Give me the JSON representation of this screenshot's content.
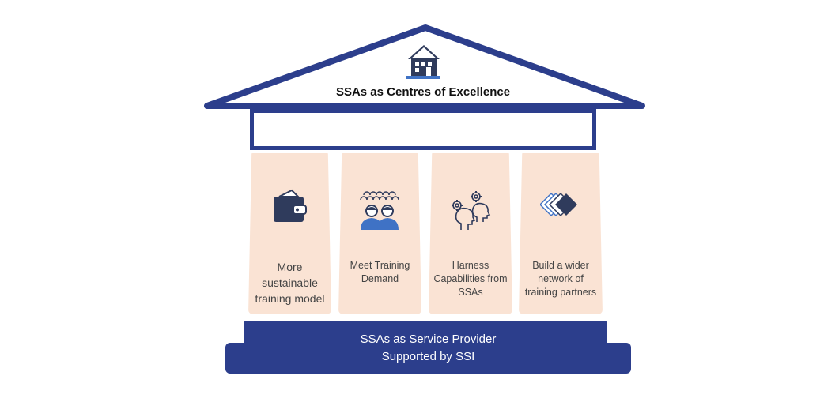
{
  "roof": {
    "title": "SSAs as Centres of Excellence",
    "icon": "house-icon"
  },
  "pillars": [
    {
      "label": "More sustainable training model",
      "icon": "wallet-icon"
    },
    {
      "label": "Meet Training Demand",
      "icon": "people-group-icon"
    },
    {
      "label": "Harness Capabilities from SSAs",
      "icon": "thinking-heads-icon"
    },
    {
      "label": "Build a wider network of training partners",
      "icon": "stacked-diamonds-icon"
    }
  ],
  "base": {
    "line1": "SSAs as Service Provider",
    "line2": "Supported by SSI"
  },
  "colors": {
    "primary": "#2c3e8c",
    "pillar": "#fae3d4",
    "icon": "#2f3b5c",
    "icon_accent": "#3f72c5"
  }
}
